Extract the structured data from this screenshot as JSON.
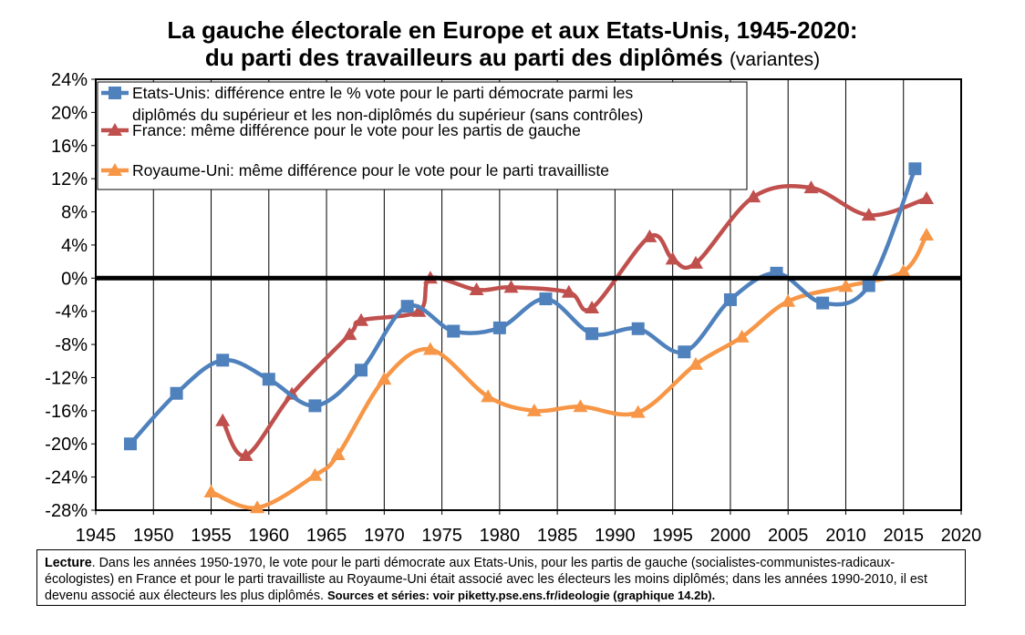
{
  "title": "La gauche électorale en Europe et aux Etats-Unis, 1945-2020:",
  "subtitle": "du parti des travailleurs au parti des diplômés",
  "subtitle_note": "(variantes)",
  "note": {
    "lead": "Lecture",
    "text": ". Dans les années 1950-1970, le vote pour le parti démocrate aux Etats-Unis, pour les partis de gauche (socialistes-communistes-radicaux-écologistes) en France et pour le parti travailliste au Royaume-Uni était associé avec les électeurs les moins diplômés; dans les années 1990-2010, il est devenu associé aux électeurs les plus diplômés.",
    "sources_label": "Sources et séries",
    "sources_text": ": voir piketty.pse.ens.fr/ideologie (graphique 14.2b)."
  },
  "chart_data": {
    "type": "line",
    "xlim": [
      1945,
      2020
    ],
    "ylim": [
      -28,
      24
    ],
    "x_ticks": [
      1945,
      1950,
      1955,
      1960,
      1965,
      1970,
      1975,
      1980,
      1985,
      1990,
      1995,
      2000,
      2005,
      2010,
      2015,
      2020
    ],
    "y_ticks": [
      -28,
      -24,
      -20,
      -16,
      -12,
      -8,
      -4,
      0,
      4,
      8,
      12,
      16,
      20,
      24
    ],
    "y_tick_labels": [
      "-28%",
      "-24%",
      "-20%",
      "-16%",
      "-12%",
      "-8%",
      "-4%",
      "0%",
      "4%",
      "8%",
      "12%",
      "16%",
      "20%",
      "24%"
    ],
    "grid": "vertical",
    "legend_position": "top-left",
    "series": [
      {
        "name": "Etats-Unis: différence entre le % vote pour le parti démocrate parmi les diplômés du supérieur et les non-diplômés du supérieur (sans contrôles)",
        "legend_lines": [
          "Etats-Unis: différence entre le % vote pour le parti démocrate parmi les",
          "diplômés du supérieur et les non-diplômés du supérieur (sans contrôles)"
        ],
        "color": "#4F81BD",
        "marker": "square",
        "points": [
          [
            1948,
            -20.0
          ],
          [
            1952,
            -13.9
          ],
          [
            1956,
            -9.9
          ],
          [
            1960,
            -12.2
          ],
          [
            1964,
            -15.4
          ],
          [
            1968,
            -11.1
          ],
          [
            1972,
            -3.4
          ],
          [
            1976,
            -6.4
          ],
          [
            1980,
            -6.0
          ],
          [
            1984,
            -2.5
          ],
          [
            1988,
            -6.7
          ],
          [
            1992,
            -6.1
          ],
          [
            1996,
            -8.9
          ],
          [
            2000,
            -2.6
          ],
          [
            2004,
            0.6
          ],
          [
            2008,
            -3.0
          ],
          [
            2012,
            -0.9
          ],
          [
            2016,
            13.2
          ]
        ]
      },
      {
        "name": "France: même différence pour le vote pour les partis de gauche",
        "legend_lines": [
          "France: même différence pour le vote pour les partis de gauche"
        ],
        "color": "#C0504D",
        "marker": "triangle",
        "points": [
          [
            1956,
            -17.2
          ],
          [
            1958,
            -21.4
          ],
          [
            1962,
            -14.0
          ],
          [
            1967,
            -6.8
          ],
          [
            1968,
            -5.1
          ],
          [
            1973,
            -4.0
          ],
          [
            1974,
            0.0
          ],
          [
            1978,
            -1.4
          ],
          [
            1981,
            -1.1
          ],
          [
            1986,
            -1.7
          ],
          [
            1988,
            -3.6
          ],
          [
            1993,
            5.0
          ],
          [
            1995,
            2.3
          ],
          [
            1997,
            1.8
          ],
          [
            2002,
            9.8
          ],
          [
            2007,
            10.9
          ],
          [
            2012,
            7.6
          ],
          [
            2017,
            9.6
          ]
        ]
      },
      {
        "name": "Royaume-Uni: même différence pour le vote pour le parti travailliste",
        "legend_lines": [
          "Royaume-Uni: même différence pour le vote pour le parti travailliste"
        ],
        "color": "#F79646",
        "marker": "triangle",
        "points": [
          [
            1955,
            -25.8
          ],
          [
            1959,
            -27.7
          ],
          [
            1964,
            -23.8
          ],
          [
            1966,
            -21.3
          ],
          [
            1970,
            -12.2
          ],
          [
            1974,
            -8.6
          ],
          [
            1979,
            -14.3
          ],
          [
            1983,
            -16.0
          ],
          [
            1987,
            -15.5
          ],
          [
            1992,
            -16.2
          ],
          [
            1997,
            -10.4
          ],
          [
            2001,
            -7.1
          ],
          [
            2005,
            -2.8
          ],
          [
            2010,
            -1.0
          ],
          [
            2015,
            0.8
          ],
          [
            2017,
            5.2
          ]
        ]
      }
    ]
  }
}
